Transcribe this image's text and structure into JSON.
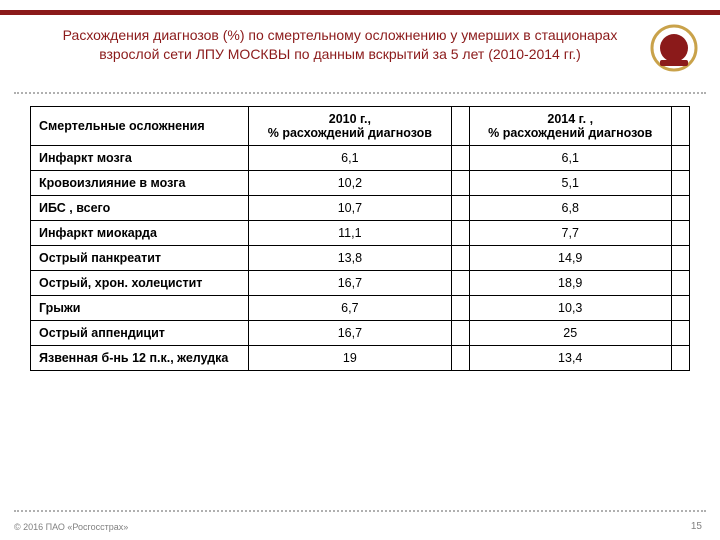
{
  "title": "Расхождения диагнозов (%) по смертельному осложнению у умерших в стационарах взрослой сети ЛПУ МОСКВЫ по данным вскрытий за 5 лет (2010-2014 гг.)",
  "logo": {
    "name": "rosgosstrakh-logo",
    "ring_color": "#c9a24a",
    "center_color": "#8b1a1a",
    "bg": "#ffffff"
  },
  "colors": {
    "stripe": "#8b1a1a",
    "title": "#8b1a1a",
    "dotted": "#b0b0b0",
    "border": "#000000",
    "footer": "#808080"
  },
  "table": {
    "columns": [
      "Смертельные осложнения",
      "2010 г.,\n% расхождений диагнозов",
      "2014 г. ,\n% расхождений диагнозов"
    ],
    "rows": [
      {
        "label": "Инфаркт мозга",
        "v2010": "6,1",
        "v2014": "6,1"
      },
      {
        "label": "Кровоизлияние в мозга",
        "v2010": "10,2",
        "v2014": "5,1"
      },
      {
        "label": "ИБС , всего",
        "v2010": "10,7",
        "v2014": "6,8"
      },
      {
        "label": "Инфаркт миокарда",
        "v2010": "11,1",
        "v2014": "7,7"
      },
      {
        "label": "Острый панкреатит",
        "v2010": "13,8",
        "v2014": "14,9"
      },
      {
        "label": "Острый, хрон. холецистит",
        "v2010": "16,7",
        "v2014": "18,9"
      },
      {
        "label": "Грыжи",
        "v2010": "6,7",
        "v2014": "10,3"
      },
      {
        "label": "Острый аппендицит",
        "v2010": "16,7",
        "v2014": "25"
      },
      {
        "label": "Язвенная б-нь 12 п.к., желудка",
        "v2010": "19",
        "v2014": "13,4"
      }
    ]
  },
  "footer": {
    "copyright": "© 2016 ПАО «Росгосстрах»",
    "page": "15"
  }
}
